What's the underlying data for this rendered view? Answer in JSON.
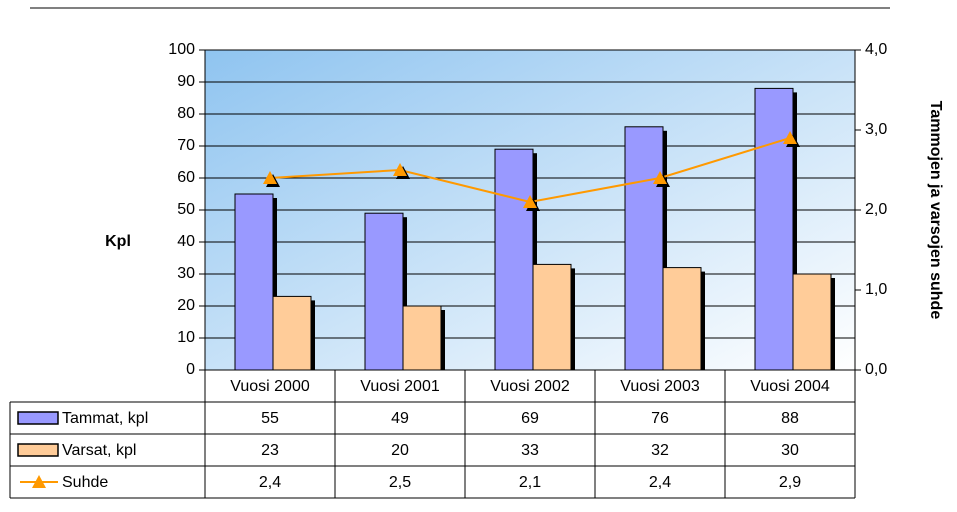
{
  "chart_data": {
    "type": "bar",
    "categories": [
      "Vuosi 2000",
      "Vuosi 2001",
      "Vuosi 2002",
      "Vuosi 2003",
      "Vuosi 2004"
    ],
    "series": [
      {
        "name": "Tammat, kpl",
        "color": "#9999ff",
        "values": [
          55,
          49,
          69,
          76,
          88
        ]
      },
      {
        "name": "Varsat, kpl",
        "color": "#ffcc99",
        "values": [
          23,
          20,
          33,
          32,
          30
        ]
      },
      {
        "name": "Suhde",
        "color": "#ff9900",
        "type": "line",
        "axis": "y2",
        "values": [
          2.4,
          2.5,
          2.1,
          2.4,
          2.9
        ],
        "value_labels": [
          "2,4",
          "2,5",
          "2,1",
          "2,4",
          "2,9"
        ]
      }
    ],
    "ylim": [
      0,
      100
    ],
    "yticks": [
      0,
      10,
      20,
      30,
      40,
      50,
      60,
      70,
      80,
      90,
      100
    ],
    "y2lim": [
      0,
      4
    ],
    "y2ticks": [
      {
        "value": 0,
        "label": "0,0"
      },
      {
        "value": 1,
        "label": "1,0"
      },
      {
        "value": 2,
        "label": "2,0"
      },
      {
        "value": 3,
        "label": "3,0"
      },
      {
        "value": 4,
        "label": "4,0"
      }
    ],
    "ylabel": "Kpl",
    "y2label": "Tammojen ja varsojen suhde",
    "grid": true
  }
}
